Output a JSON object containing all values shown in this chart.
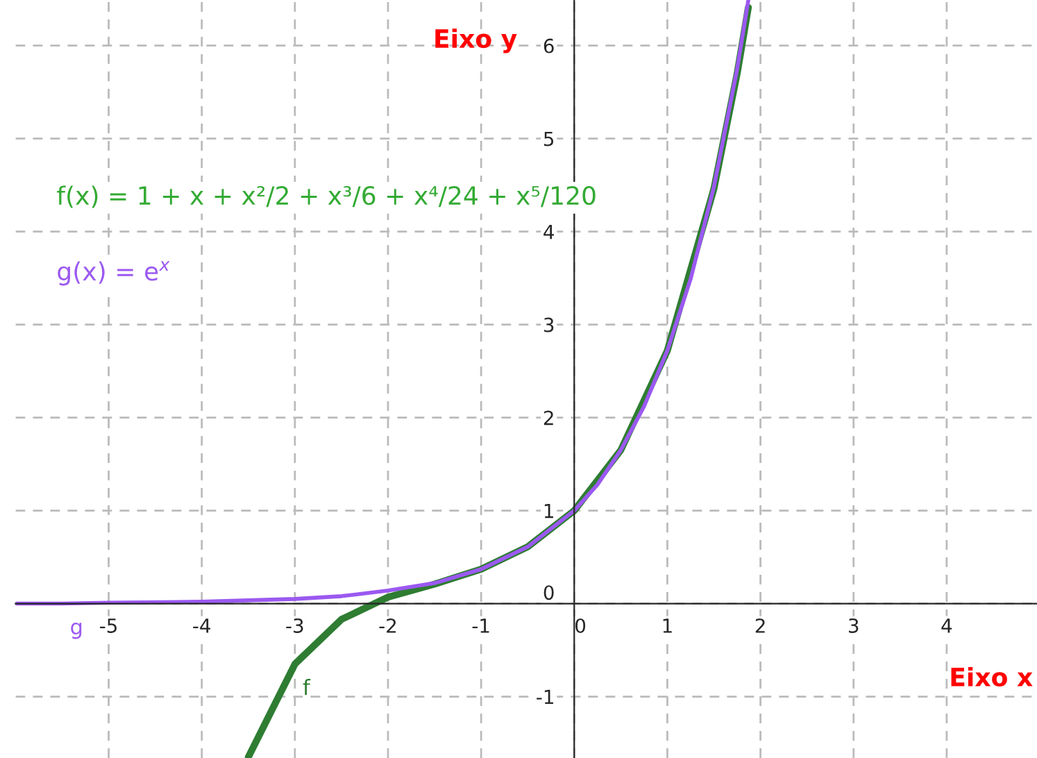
{
  "chart_data": {
    "type": "line",
    "xlabel": "Eixo x",
    "ylabel": "Eixo y",
    "annotations": [
      "f(x) = 1 + x + x²/2 + x³/6 + x⁴/24 + x⁵/120",
      "g(x) = e$^{x}$"
    ],
    "series": [
      {
        "name": "f",
        "color": "#2e7d32",
        "x": [
          -3.5,
          -3,
          -2.5,
          -2,
          -1.5,
          -1,
          -0.5,
          0,
          0.5,
          1,
          1.5,
          1.75,
          1.87
        ],
        "values": [
          -1.65,
          -0.65,
          -0.17,
          0.07,
          0.21,
          0.37,
          0.61,
          1,
          1.65,
          2.72,
          4.46,
          5.7,
          6.41
        ]
      },
      {
        "name": "g",
        "color": "#9b59f0",
        "x": [
          -6,
          -5.5,
          -5,
          -4,
          -3,
          -2.5,
          -2,
          -1.5,
          -1,
          -0.5,
          0,
          0.25,
          0.5,
          0.75,
          1,
          1.25,
          1.5,
          1.75,
          1.87
        ],
        "values": [
          0.0,
          0.0,
          0.01,
          0.02,
          0.05,
          0.08,
          0.14,
          0.22,
          0.37,
          0.61,
          1,
          1.28,
          1.65,
          2.12,
          2.72,
          3.49,
          4.48,
          5.75,
          6.49
        ]
      }
    ],
    "xlim": [
      -6,
      4.97
    ],
    "ylim": [
      -1.66,
      6.49
    ],
    "xticks": [
      -5,
      -4,
      -3,
      -2,
      -1,
      0,
      1,
      2,
      3,
      4
    ],
    "yticks": [
      -1,
      0,
      1,
      2,
      3,
      4,
      5,
      6
    ],
    "grid": true,
    "marker": "none",
    "line_style": "solid",
    "legend": false
  }
}
